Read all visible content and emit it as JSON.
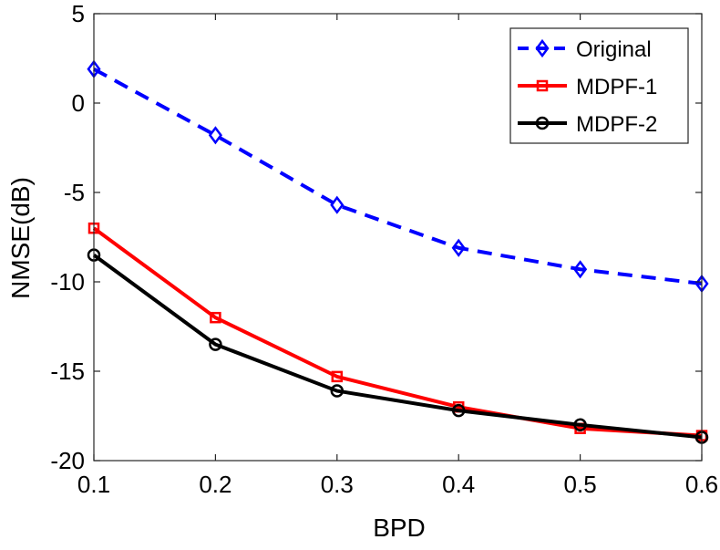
{
  "chart_data": {
    "type": "line",
    "title": "",
    "xlabel": "BPD",
    "ylabel": "NMSE(dB)",
    "x": [
      0.1,
      0.2,
      0.3,
      0.4,
      0.5,
      0.6
    ],
    "xlim": [
      0.1,
      0.6
    ],
    "ylim": [
      -20,
      5
    ],
    "xticks": [
      "0.1",
      "0.2",
      "0.3",
      "0.4",
      "0.5",
      "0.6"
    ],
    "yticks": [
      "5",
      "0",
      "-5",
      "-10",
      "-15",
      "-20"
    ],
    "ytick_values": [
      5,
      0,
      -5,
      -10,
      -15,
      -20
    ],
    "grid": false,
    "legend_position": "top-right",
    "series": [
      {
        "name": "Original",
        "values": [
          1.9,
          -1.8,
          -5.7,
          -8.1,
          -9.3,
          -10.1
        ],
        "color": "#0000ff",
        "line": "dashed",
        "marker": "diamond"
      },
      {
        "name": "MDPF-1",
        "values": [
          -7.0,
          -12.0,
          -15.3,
          -17.0,
          -18.2,
          -18.6
        ],
        "color": "#ff0000",
        "line": "solid",
        "marker": "square"
      },
      {
        "name": "MDPF-2",
        "values": [
          -8.5,
          -13.5,
          -16.1,
          -17.2,
          -18.0,
          -18.7
        ],
        "color": "#000000",
        "line": "solid",
        "marker": "circle"
      }
    ]
  }
}
